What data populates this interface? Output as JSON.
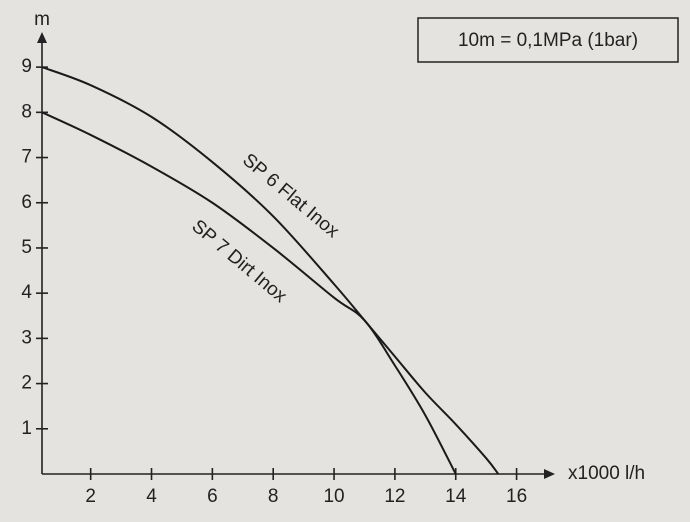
{
  "chart_data": {
    "type": "line",
    "x_label": "x1000 l/h",
    "y_label": "m",
    "annotation": "10m = 0,1MPa (1bar)",
    "xlim": [
      0.4,
      17
    ],
    "ylim": [
      0,
      9.6
    ],
    "xticks": [
      2,
      4,
      6,
      8,
      10,
      12,
      14,
      16
    ],
    "yticks": [
      1,
      2,
      3,
      4,
      5,
      6,
      7,
      8,
      9
    ],
    "series": [
      {
        "name": "SP 6 Flat Inox",
        "color": "#1a1a1a",
        "x": [
          0.4,
          2,
          4,
          6,
          8,
          10,
          11,
          12,
          13,
          14,
          15,
          15.4
        ],
        "values": [
          9,
          8.6,
          7.9,
          6.9,
          5.7,
          4.2,
          3.4,
          2.6,
          1.8,
          1.1,
          0.35,
          0
        ]
      },
      {
        "name": "SP 7 Dirt Inox",
        "color": "#1a1a1a",
        "x": [
          0.4,
          2,
          4,
          6,
          8,
          10,
          11,
          12,
          13,
          14
        ],
        "values": [
          8,
          7.5,
          6.8,
          6.0,
          5.0,
          3.9,
          3.4,
          2.4,
          1.3,
          0
        ]
      }
    ]
  }
}
